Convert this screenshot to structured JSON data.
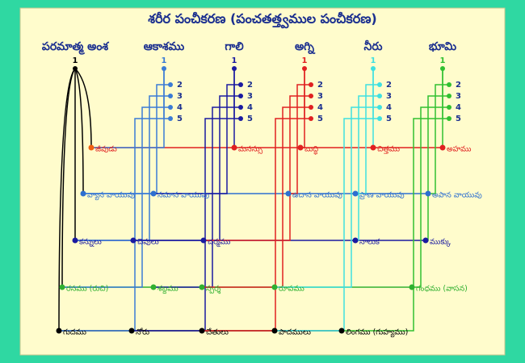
{
  "title": "శరీర పంచీకరణ (పంచతత్త్వముల పంచీకరణ)",
  "columns": [
    {
      "label": "పరమాత్మ అంశ",
      "numbers": [
        "1"
      ]
    },
    {
      "label": "ఆకాశము",
      "numbers": [
        "1",
        "2",
        "3",
        "4",
        "5"
      ]
    },
    {
      "label": "గాలి",
      "numbers": [
        "1",
        "2",
        "3",
        "4",
        "5"
      ]
    },
    {
      "label": "అగ్ని",
      "numbers": [
        "1",
        "2",
        "3",
        "4",
        "5"
      ]
    },
    {
      "label": "నీరు",
      "numbers": [
        "1",
        "2",
        "3",
        "4",
        "5"
      ]
    },
    {
      "label": "భూమి",
      "numbers": [
        "1",
        "2",
        "3",
        "4",
        "5"
      ]
    }
  ],
  "rows": [
    [
      "జీవుడు",
      "మనస్సు",
      "బుద్ధి",
      "చిత్తము",
      "అహము"
    ],
    [
      "వ్యాన వాయువు",
      "సమాన వాయువు",
      "ఉదాన వాయువు",
      "ప్రాణ వాయువు",
      "అపాన వాయువు"
    ],
    [
      "కన్నులు",
      "చెవులు",
      "చర్మము",
      "నాలుక",
      "ముక్కు"
    ],
    [
      "రసము (రుచి)",
      "శబ్దము",
      "స్పర్శ",
      "రూపము",
      "గంధము (వాసన)"
    ],
    [
      "గుదము",
      "నోరు",
      "చేతులు",
      "పాదములు",
      "లింగము (గుహ్యము)"
    ]
  ]
}
